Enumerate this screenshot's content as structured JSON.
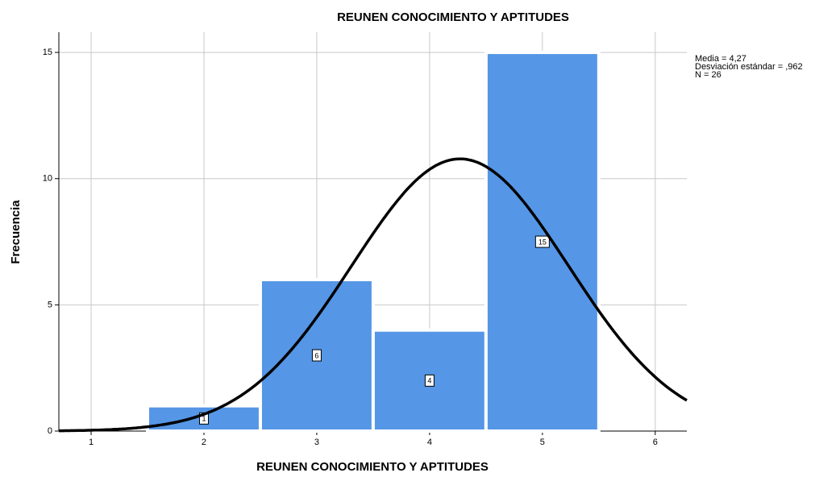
{
  "chart_data": {
    "type": "histogram",
    "title": "REUNEN CONOCIMIENTO Y APTITUDES",
    "x_label": "REUNEN CONOCIMIENTO Y APTITUDES",
    "y_label": "Frecuencia",
    "bins": [
      1.5,
      2.5,
      3.5,
      4.5,
      5.5
    ],
    "values": [
      1,
      6,
      4,
      15
    ],
    "color": "#5596e6",
    "xlim": [
      0.714,
      6.28
    ],
    "xticks": [
      1,
      2,
      3,
      4,
      5,
      6
    ],
    "ylim": [
      0,
      15.8
    ],
    "yticks": [
      0,
      5,
      10,
      15
    ],
    "grid": true,
    "stats": [
      {
        "value": 4.27,
        "label": "Media = 4,27"
      },
      {
        "value": 0.962,
        "label": "Desviación estándar = ,962"
      },
      {
        "value": 26,
        "label": "N = 26"
      }
    ]
  }
}
